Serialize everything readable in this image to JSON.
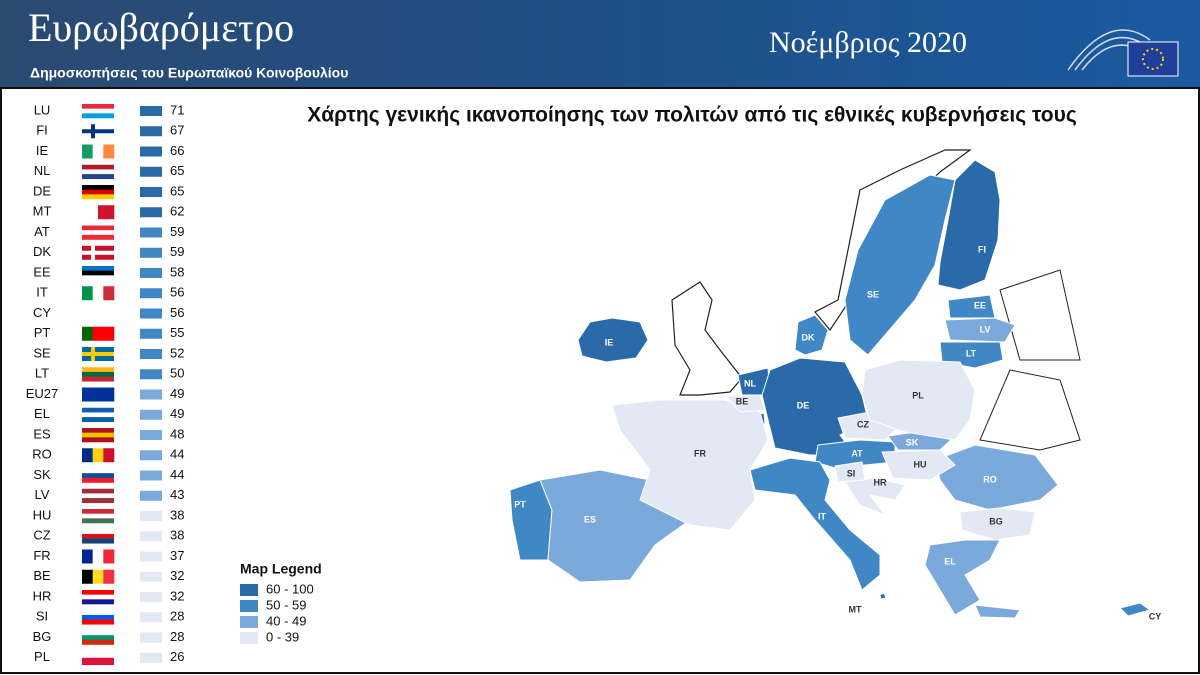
{
  "header": {
    "title": "Ευρωβαρόμετρο",
    "subtitle": "Δημοσκοπήσεις του Ευρωπαϊκού Κοινοβουλίου",
    "date": "Νοέμβριος 2020"
  },
  "map": {
    "title": "Χάρτης γενικής ικανοποίησης των πολιτών από τις εθνικές κυβερνήσεις τους",
    "legend_title": "Map Legend",
    "legend": [
      {
        "label": "60 - 100",
        "min": 60,
        "max": 100,
        "color": "#2b6aa9"
      },
      {
        "label": "50 - 59",
        "min": 50,
        "max": 59,
        "color": "#3f87c5"
      },
      {
        "label": "40 - 49",
        "min": 40,
        "max": 49,
        "color": "#7ca9dc"
      },
      {
        "label": "0 - 39",
        "min": 0,
        "max": 39,
        "color": "#e2e9f4"
      }
    ]
  },
  "ranking": [
    {
      "code": "LU",
      "value": 71
    },
    {
      "code": "FI",
      "value": 67
    },
    {
      "code": "IE",
      "value": 66
    },
    {
      "code": "NL",
      "value": 65
    },
    {
      "code": "DE",
      "value": 65
    },
    {
      "code": "MT",
      "value": 62
    },
    {
      "code": "AT",
      "value": 59
    },
    {
      "code": "DK",
      "value": 59
    },
    {
      "code": "EE",
      "value": 58
    },
    {
      "code": "IT",
      "value": 56
    },
    {
      "code": "CY",
      "value": 56
    },
    {
      "code": "PT",
      "value": 55
    },
    {
      "code": "SE",
      "value": 52
    },
    {
      "code": "LT",
      "value": 50
    },
    {
      "code": "EU27",
      "value": 49
    },
    {
      "code": "EL",
      "value": 49
    },
    {
      "code": "ES",
      "value": 48
    },
    {
      "code": "RO",
      "value": 44
    },
    {
      "code": "SK",
      "value": 44
    },
    {
      "code": "LV",
      "value": 43
    },
    {
      "code": "HU",
      "value": 38
    },
    {
      "code": "CZ",
      "value": 38
    },
    {
      "code": "FR",
      "value": 37
    },
    {
      "code": "BE",
      "value": 32
    },
    {
      "code": "HR",
      "value": 32
    },
    {
      "code": "SI",
      "value": 28
    },
    {
      "code": "BG",
      "value": 28
    },
    {
      "code": "PL",
      "value": 26
    }
  ]
}
